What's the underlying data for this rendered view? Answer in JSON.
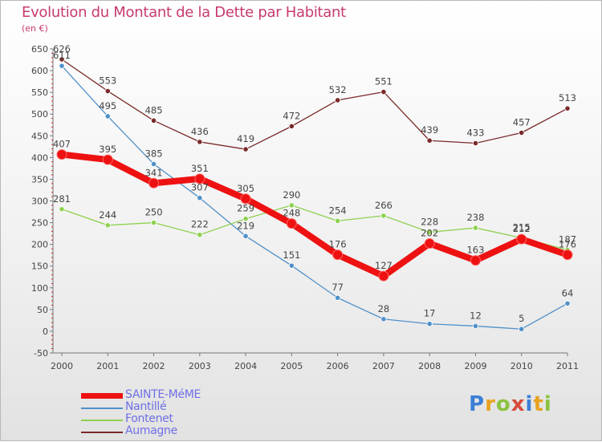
{
  "title": "Evolution du Montant de la Dette par Habitant",
  "subtitle": "(en €)",
  "logo": {
    "text": "Proxiti",
    "colors": [
      "#3b7fd6",
      "#e7a21f",
      "#8ac33f",
      "#d64a3b",
      "#3b7fd6",
      "#e7a21f",
      "#8ac33f"
    ]
  },
  "chart_data": {
    "type": "line",
    "title": "Evolution du Montant de la Dette par Habitant",
    "ylabel": "(en €)",
    "xlabel": "",
    "x": [
      "2000",
      "2001",
      "2002",
      "2003",
      "2004",
      "2005",
      "2006",
      "2007",
      "2008",
      "2009",
      "2010",
      "2011"
    ],
    "ylim": [
      -50,
      650
    ],
    "yticks": [
      -50,
      0,
      50,
      100,
      150,
      200,
      250,
      300,
      350,
      400,
      450,
      500,
      550,
      600,
      650
    ],
    "grid": false,
    "legend_position": "bottom-left",
    "series": [
      {
        "name": "SAINTE-MéME",
        "values": [
          407,
          395,
          341,
          351,
          305,
          248,
          176,
          127,
          202,
          163,
          212,
          176
        ],
        "color": "#ee1111",
        "thick": true
      },
      {
        "name": "Nantillé",
        "values": [
          611,
          495,
          385,
          307,
          219,
          151,
          77,
          28,
          17,
          12,
          5,
          64
        ],
        "color": "#4f90c8",
        "thick": false
      },
      {
        "name": "Fontenet",
        "values": [
          281,
          244,
          250,
          222,
          259,
          290,
          254,
          266,
          228,
          238,
          215,
          187
        ],
        "color": "#8fd14f",
        "thick": false
      },
      {
        "name": "Aumagne",
        "values": [
          626,
          553,
          485,
          436,
          419,
          472,
          532,
          551,
          439,
          433,
          457,
          513
        ],
        "color": "#7a2a2a",
        "thick": false
      }
    ]
  }
}
